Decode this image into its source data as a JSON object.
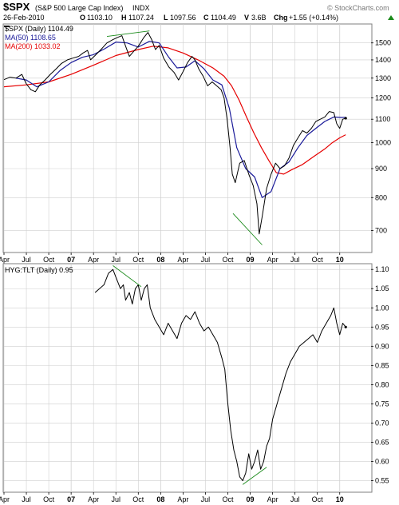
{
  "header": {
    "symbol": "$SPX",
    "name": "(S&P 500 Large Cap Index)",
    "exchange": "INDX",
    "date": "26-Feb-2010",
    "open_label": "O",
    "open": "1103.10",
    "high_label": "H",
    "high": "1107.24",
    "low_label": "L",
    "low": "1097.56",
    "close_label": "C",
    "close": "1104.49",
    "volume_label": "V",
    "volume": "3.6B",
    "change_label": "Chg",
    "change": "+1.55 (+0.14%)",
    "change_icon": "up-arrow-icon",
    "watermark": "© StockCharts.com"
  },
  "colors": {
    "price": "#000000",
    "ma50": "#1a1a99",
    "ma200": "#e60000",
    "trendline": "#1a8a1a",
    "grid": "#cfcfcf",
    "frame": "#7f7f7f"
  },
  "chart_data": [
    {
      "type": "line",
      "series_label": "$SPX (Daily) 1104.49",
      "scale": "log",
      "ylim": [
        640,
        1620
      ],
      "yticks": [
        700,
        800,
        900,
        1000,
        1100,
        1200,
        1300,
        1400,
        1500
      ],
      "x_ticks": [
        "Apr",
        "Jul",
        "Oct",
        "07",
        "Apr",
        "Jul",
        "Oct",
        "08",
        "Apr",
        "Jul",
        "Oct",
        "09",
        "Apr",
        "Jul",
        "Oct",
        "10"
      ],
      "x_range_months": [
        0,
        49.2
      ],
      "grid": true,
      "legend_position": "top-left",
      "series": [
        {
          "name": "$SPX (Daily) 1104.49",
          "points": [
            [
              0,
              1292
            ],
            [
              0.8,
              1305
            ],
            [
              1.6,
              1300
            ],
            [
              2.4,
              1320
            ],
            [
              3.0,
              1270
            ],
            [
              3.6,
              1240
            ],
            [
              4.2,
              1230
            ],
            [
              4.8,
              1265
            ],
            [
              5.5,
              1290
            ],
            [
              6.2,
              1320
            ],
            [
              7.0,
              1350
            ],
            [
              7.7,
              1380
            ],
            [
              8.5,
              1400
            ],
            [
              9.2,
              1410
            ],
            [
              10.0,
              1420
            ],
            [
              10.6,
              1440
            ],
            [
              11.2,
              1455
            ],
            [
              11.6,
              1400
            ],
            [
              12.2,
              1425
            ],
            [
              13.0,
              1460
            ],
            [
              13.8,
              1500
            ],
            [
              14.6,
              1520
            ],
            [
              15.3,
              1535
            ],
            [
              15.8,
              1545
            ],
            [
              16.3,
              1480
            ],
            [
              16.8,
              1420
            ],
            [
              17.4,
              1450
            ],
            [
              18.0,
              1480
            ],
            [
              18.7,
              1530
            ],
            [
              19.3,
              1565
            ],
            [
              19.8,
              1520
            ],
            [
              20.3,
              1460
            ],
            [
              20.8,
              1485
            ],
            [
              21.4,
              1410
            ],
            [
              22.1,
              1360
            ],
            [
              22.8,
              1330
            ],
            [
              23.4,
              1290
            ],
            [
              24.0,
              1335
            ],
            [
              24.6,
              1385
            ],
            [
              25.2,
              1420
            ],
            [
              25.6,
              1400
            ],
            [
              26.1,
              1350
            ],
            [
              26.7,
              1310
            ],
            [
              27.3,
              1260
            ],
            [
              27.9,
              1280
            ],
            [
              28.5,
              1260
            ],
            [
              29.1,
              1240
            ],
            [
              29.5,
              1200
            ],
            [
              29.9,
              1100
            ],
            [
              30.3,
              980
            ],
            [
              30.6,
              880
            ],
            [
              31.0,
              850
            ],
            [
              31.6,
              920
            ],
            [
              32.2,
              930
            ],
            [
              32.8,
              880
            ],
            [
              33.4,
              840
            ],
            [
              33.9,
              780
            ],
            [
              34.2,
              690
            ],
            [
              34.6,
              740
            ],
            [
              35.2,
              830
            ],
            [
              35.8,
              880
            ],
            [
              36.4,
              920
            ],
            [
              37.0,
              900
            ],
            [
              37.6,
              910
            ],
            [
              38.2,
              940
            ],
            [
              38.8,
              990
            ],
            [
              39.4,
              1020
            ],
            [
              40.0,
              1050
            ],
            [
              40.6,
              1040
            ],
            [
              41.2,
              1060
            ],
            [
              41.8,
              1090
            ],
            [
              42.4,
              1100
            ],
            [
              43.0,
              1110
            ],
            [
              43.6,
              1135
            ],
            [
              44.2,
              1130
            ],
            [
              44.6,
              1080
            ],
            [
              45.0,
              1060
            ],
            [
              45.4,
              1100
            ],
            [
              45.8,
              1104.49
            ]
          ]
        },
        {
          "name": "MA(50) 1108.65",
          "points": [
            [
              1.6,
              1300
            ],
            [
              3.0,
              1290
            ],
            [
              4.4,
              1255
            ],
            [
              6.0,
              1280
            ],
            [
              7.5,
              1340
            ],
            [
              9.0,
              1385
            ],
            [
              10.5,
              1415
            ],
            [
              12.0,
              1430
            ],
            [
              13.5,
              1465
            ],
            [
              15.0,
              1505
            ],
            [
              16.5,
              1500
            ],
            [
              18.0,
              1475
            ],
            [
              19.5,
              1510
            ],
            [
              20.8,
              1500
            ],
            [
              22.0,
              1420
            ],
            [
              23.2,
              1355
            ],
            [
              24.4,
              1360
            ],
            [
              25.6,
              1395
            ],
            [
              26.8,
              1350
            ],
            [
              28.0,
              1290
            ],
            [
              29.2,
              1265
            ],
            [
              30.2,
              1150
            ],
            [
              31.2,
              980
            ],
            [
              32.4,
              900
            ],
            [
              33.6,
              870
            ],
            [
              34.6,
              800
            ],
            [
              35.8,
              820
            ],
            [
              37.0,
              900
            ],
            [
              38.2,
              925
            ],
            [
              39.4,
              980
            ],
            [
              40.6,
              1030
            ],
            [
              41.8,
              1060
            ],
            [
              43.0,
              1090
            ],
            [
              44.2,
              1110
            ],
            [
              45.2,
              1108
            ],
            [
              45.8,
              1108.65
            ]
          ]
        },
        {
          "name": "MA(200) 1033.02",
          "points": [
            [
              0,
              1255
            ],
            [
              3.0,
              1265
            ],
            [
              6.0,
              1280
            ],
            [
              9.0,
              1320
            ],
            [
              12.0,
              1370
            ],
            [
              15.0,
              1425
            ],
            [
              18.0,
              1460
            ],
            [
              20.0,
              1480
            ],
            [
              22.0,
              1470
            ],
            [
              24.0,
              1440
            ],
            [
              26.0,
              1400
            ],
            [
              28.0,
              1355
            ],
            [
              29.5,
              1310
            ],
            [
              30.5,
              1260
            ],
            [
              31.5,
              1190
            ],
            [
              32.5,
              1110
            ],
            [
              33.5,
              1040
            ],
            [
              34.5,
              980
            ],
            [
              35.5,
              930
            ],
            [
              36.5,
              885
            ],
            [
              37.5,
              880
            ],
            [
              38.5,
              895
            ],
            [
              40.0,
              915
            ],
            [
              41.5,
              945
            ],
            [
              43.0,
              975
            ],
            [
              44.0,
              1000
            ],
            [
              45.0,
              1020
            ],
            [
              45.8,
              1033.02
            ]
          ]
        },
        {
          "name": "Trendline top",
          "points": [
            [
              13.8,
              1540
            ],
            [
              19.5,
              1575
            ]
          ]
        },
        {
          "name": "Trendline bottom",
          "points": [
            [
              30.7,
              750
            ],
            [
              34.6,
              660
            ]
          ]
        }
      ]
    },
    {
      "type": "line",
      "series_label": "HYG:TLT (Daily) 0.95",
      "ylim": [
        0.52,
        1.115
      ],
      "yticks": [
        0.55,
        0.6,
        0.65,
        0.7,
        0.75,
        0.8,
        0.85,
        0.9,
        0.95,
        1.0,
        1.05,
        1.1
      ],
      "x_ticks": [
        "Apr",
        "Jul",
        "Oct",
        "07",
        "Apr",
        "Jul",
        "Oct",
        "08",
        "Apr",
        "Jul",
        "Oct",
        "09",
        "Apr",
        "Jul",
        "Oct",
        "10"
      ],
      "x_range_months": [
        0,
        49.2
      ],
      "grid": true,
      "legend_position": "top-left",
      "series": [
        {
          "name": "HYG:TLT (Daily) 0.95",
          "points": [
            [
              12.2,
              1.04
            ],
            [
              12.8,
              1.05
            ],
            [
              13.4,
              1.06
            ],
            [
              14.0,
              1.09
            ],
            [
              14.6,
              1.1
            ],
            [
              15.0,
              1.08
            ],
            [
              15.6,
              1.05
            ],
            [
              16.0,
              1.06
            ],
            [
              16.3,
              1.02
            ],
            [
              16.8,
              1.04
            ],
            [
              17.2,
              1.01
            ],
            [
              17.6,
              1.05
            ],
            [
              18.0,
              1.06
            ],
            [
              18.4,
              1.02
            ],
            [
              18.8,
              1.05
            ],
            [
              19.2,
              1.06
            ],
            [
              19.6,
              1.0
            ],
            [
              20.2,
              0.97
            ],
            [
              20.8,
              0.95
            ],
            [
              21.4,
              0.93
            ],
            [
              22.0,
              0.96
            ],
            [
              22.6,
              0.94
            ],
            [
              23.2,
              0.92
            ],
            [
              23.8,
              0.96
            ],
            [
              24.4,
              0.98
            ],
            [
              25.0,
              0.97
            ],
            [
              25.6,
              0.99
            ],
            [
              26.2,
              0.96
            ],
            [
              26.8,
              0.94
            ],
            [
              27.4,
              0.95
            ],
            [
              28.0,
              0.93
            ],
            [
              28.6,
              0.91
            ],
            [
              29.2,
              0.87
            ],
            [
              29.6,
              0.84
            ],
            [
              30.0,
              0.75
            ],
            [
              30.4,
              0.68
            ],
            [
              30.8,
              0.63
            ],
            [
              31.2,
              0.6
            ],
            [
              31.6,
              0.56
            ],
            [
              32.0,
              0.55
            ],
            [
              32.4,
              0.57
            ],
            [
              32.8,
              0.62
            ],
            [
              33.2,
              0.58
            ],
            [
              33.6,
              0.6
            ],
            [
              34.0,
              0.63
            ],
            [
              34.4,
              0.58
            ],
            [
              34.8,
              0.6
            ],
            [
              35.2,
              0.64
            ],
            [
              35.6,
              0.66
            ],
            [
              36.0,
              0.71
            ],
            [
              36.6,
              0.75
            ],
            [
              37.2,
              0.79
            ],
            [
              37.8,
              0.83
            ],
            [
              38.4,
              0.86
            ],
            [
              39.0,
              0.88
            ],
            [
              39.6,
              0.9
            ],
            [
              40.2,
              0.91
            ],
            [
              40.8,
              0.92
            ],
            [
              41.4,
              0.93
            ],
            [
              42.0,
              0.91
            ],
            [
              42.6,
              0.94
            ],
            [
              43.2,
              0.96
            ],
            [
              43.8,
              0.98
            ],
            [
              44.2,
              1.0
            ],
            [
              44.6,
              0.96
            ],
            [
              45.0,
              0.93
            ],
            [
              45.4,
              0.96
            ],
            [
              45.8,
              0.95
            ]
          ]
        },
        {
          "name": "Trendline top",
          "points": [
            [
              14.6,
              1.11
            ],
            [
              18.4,
              1.055
            ]
          ]
        },
        {
          "name": "Trendline bottom",
          "points": [
            [
              32.0,
              0.54
            ],
            [
              35.2,
              0.585
            ]
          ]
        }
      ]
    }
  ]
}
